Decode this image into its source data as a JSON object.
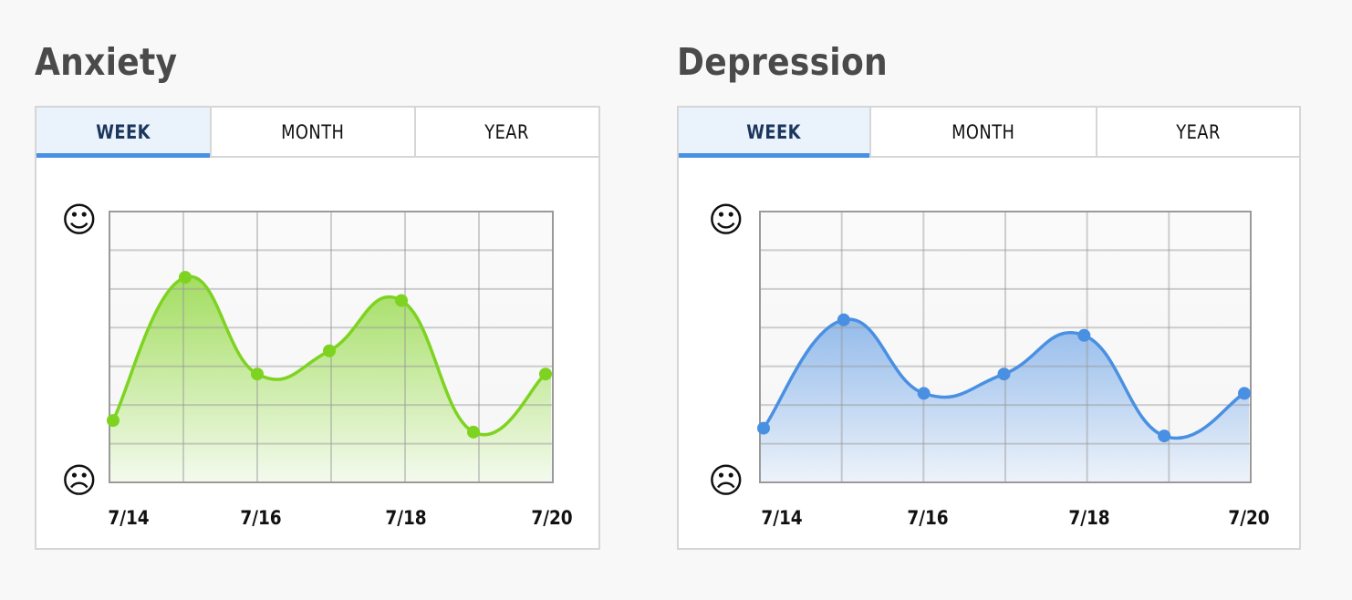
{
  "panels": [
    {
      "id": "anxiety",
      "title": "Anxiety",
      "tabs": [
        {
          "label": "WEEK",
          "active": true
        },
        {
          "label": "MONTH",
          "active": false
        },
        {
          "label": "YEAR",
          "active": false
        }
      ],
      "y_top_icon": "smiley-face-icon",
      "y_top_glyph": "☺",
      "y_bottom_icon": "frowny-face-icon",
      "y_bottom_glyph": "☹",
      "x_labels": [
        "7/14",
        "7/16",
        "7/18",
        "7/20"
      ],
      "colors": {
        "line": "#7ed321",
        "fill_top": "#9fdc5a",
        "fill_bottom": "#f4faee"
      }
    },
    {
      "id": "depression",
      "title": "Depression",
      "tabs": [
        {
          "label": "WEEK",
          "active": true
        },
        {
          "label": "MONTH",
          "active": false
        },
        {
          "label": "YEAR",
          "active": false
        }
      ],
      "y_top_icon": "smiley-face-icon",
      "y_top_glyph": "☺",
      "y_bottom_icon": "frowny-face-icon",
      "y_bottom_glyph": "☹",
      "x_labels": [
        "7/14",
        "7/16",
        "7/18",
        "7/20"
      ],
      "colors": {
        "line": "#4a90e2",
        "fill_top": "#8fb8ea",
        "fill_bottom": "#eef3fa"
      }
    }
  ],
  "chart_data": [
    {
      "type": "area",
      "title": "Anxiety",
      "subtitle": "WEEK",
      "x": [
        "7/14",
        "7/15",
        "7/16",
        "7/17",
        "7/18",
        "7/19",
        "7/20"
      ],
      "x_tick_labels": [
        "7/14",
        "7/16",
        "7/18",
        "7/20"
      ],
      "values": [
        1.6,
        5.3,
        2.8,
        3.4,
        4.7,
        1.3,
        2.8
      ],
      "ylim": [
        0,
        7
      ],
      "ylabel_top": "☺ (better)",
      "ylabel_bottom": "☹ (worse)",
      "grid": true,
      "smooth": true,
      "color": "#7ed321"
    },
    {
      "type": "area",
      "title": "Depression",
      "subtitle": "WEEK",
      "x": [
        "7/14",
        "7/15",
        "7/16",
        "7/17",
        "7/18",
        "7/19",
        "7/20"
      ],
      "x_tick_labels": [
        "7/14",
        "7/16",
        "7/18",
        "7/20"
      ],
      "values": [
        1.4,
        4.2,
        2.3,
        2.8,
        3.8,
        1.2,
        2.3
      ],
      "ylim": [
        0,
        7
      ],
      "ylabel_top": "☺ (better)",
      "ylabel_bottom": "☹ (worse)",
      "grid": true,
      "smooth": true,
      "color": "#4a90e2"
    }
  ]
}
